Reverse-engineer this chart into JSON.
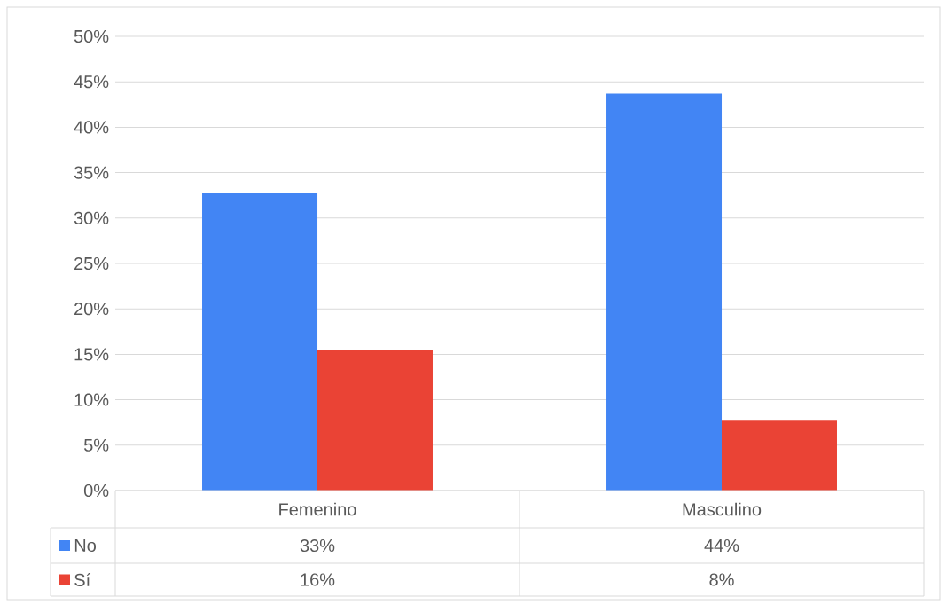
{
  "chart_data": {
    "type": "bar",
    "categories": [
      "Femenino",
      "Masculino"
    ],
    "series": [
      {
        "name": "No",
        "color": "#4285f4",
        "values": [
          32.8,
          43.7
        ],
        "value_labels": [
          "33%",
          "44%"
        ]
      },
      {
        "name": "Sí",
        "color": "#ea4335",
        "values": [
          15.5,
          7.7
        ],
        "value_labels": [
          "16%",
          "8%"
        ]
      }
    ],
    "ylim": [
      0,
      50
    ],
    "yticks": [
      {
        "value": 0,
        "label": "0%"
      },
      {
        "value": 5,
        "label": "5%"
      },
      {
        "value": 10,
        "label": "10%"
      },
      {
        "value": 15,
        "label": "15%"
      },
      {
        "value": 20,
        "label": "20%"
      },
      {
        "value": 25,
        "label": "25%"
      },
      {
        "value": 30,
        "label": "30%"
      },
      {
        "value": 35,
        "label": "35%"
      },
      {
        "value": 40,
        "label": "40%"
      },
      {
        "value": 45,
        "label": "45%"
      },
      {
        "value": 50,
        "label": "50%"
      }
    ],
    "grid": "y",
    "legend": "bottom"
  }
}
